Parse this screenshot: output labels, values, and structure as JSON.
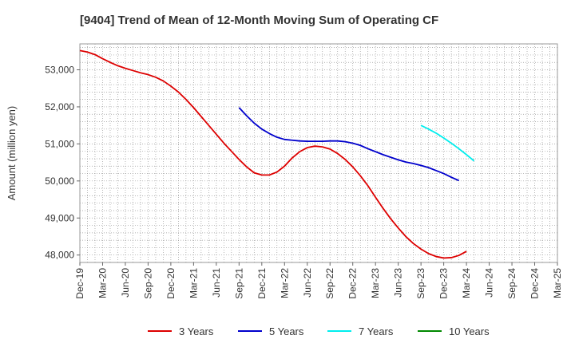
{
  "chart_data": {
    "type": "line",
    "title": "[9404]  Trend of Mean of 12-Month Moving Sum of Operating CF",
    "xlabel": "",
    "ylabel": "Amount (million yen)",
    "ylim": [
      47800,
      53700
    ],
    "yticks": [
      48000,
      49000,
      50000,
      51000,
      52000,
      53000
    ],
    "ytick_labels": [
      "48,000",
      "49,000",
      "50,000",
      "51,000",
      "52,000",
      "53,000"
    ],
    "x_tick_labels": [
      "Dec-19",
      "Mar-20",
      "Jun-20",
      "Sep-20",
      "Dec-20",
      "Mar-21",
      "Jun-21",
      "Sep-21",
      "Dec-21",
      "Mar-22",
      "Jun-22",
      "Sep-22",
      "Dec-22",
      "Mar-23",
      "Jun-23",
      "Sep-23",
      "Dec-23",
      "Mar-24",
      "Jun-24",
      "Sep-24",
      "Dec-24",
      "Mar-25"
    ],
    "x_start": "Dec-19",
    "x_unit": "month index from Dec-19",
    "grid": true,
    "legend_position": "bottom",
    "series": [
      {
        "name": "3 Years",
        "color": "#dd0000",
        "start_month": 0,
        "values": [
          53520,
          53480,
          53410,
          53300,
          53200,
          53110,
          53040,
          52980,
          52920,
          52870,
          52800,
          52700,
          52560,
          52400,
          52200,
          51980,
          51740,
          51500,
          51260,
          51020,
          50800,
          50580,
          50380,
          50220,
          50160,
          50160,
          50240,
          50400,
          50620,
          50790,
          50900,
          50940,
          50920,
          50860,
          50740,
          50580,
          50380,
          50140,
          49870,
          49560,
          49260,
          48980,
          48730,
          48500,
          48310,
          48160,
          48040,
          47960,
          47920,
          47930,
          47990,
          48100
        ]
      },
      {
        "name": "5 Years",
        "color": "#0000cc",
        "start_month": 21,
        "values": [
          51980,
          51760,
          51560,
          51400,
          51280,
          51180,
          51120,
          51100,
          51080,
          51070,
          51070,
          51070,
          51080,
          51080,
          51060,
          51020,
          50960,
          50870,
          50790,
          50710,
          50640,
          50570,
          50510,
          50470,
          50420,
          50360,
          50280,
          50200,
          50100,
          50010
        ]
      },
      {
        "name": "7 Years",
        "color": "#00eeee",
        "start_month": 45,
        "values": [
          51500,
          51400,
          51290,
          51160,
          51020,
          50870,
          50710,
          50540
        ]
      },
      {
        "name": "10 Years",
        "color": "#008800",
        "start_month": 0,
        "values": []
      }
    ]
  }
}
